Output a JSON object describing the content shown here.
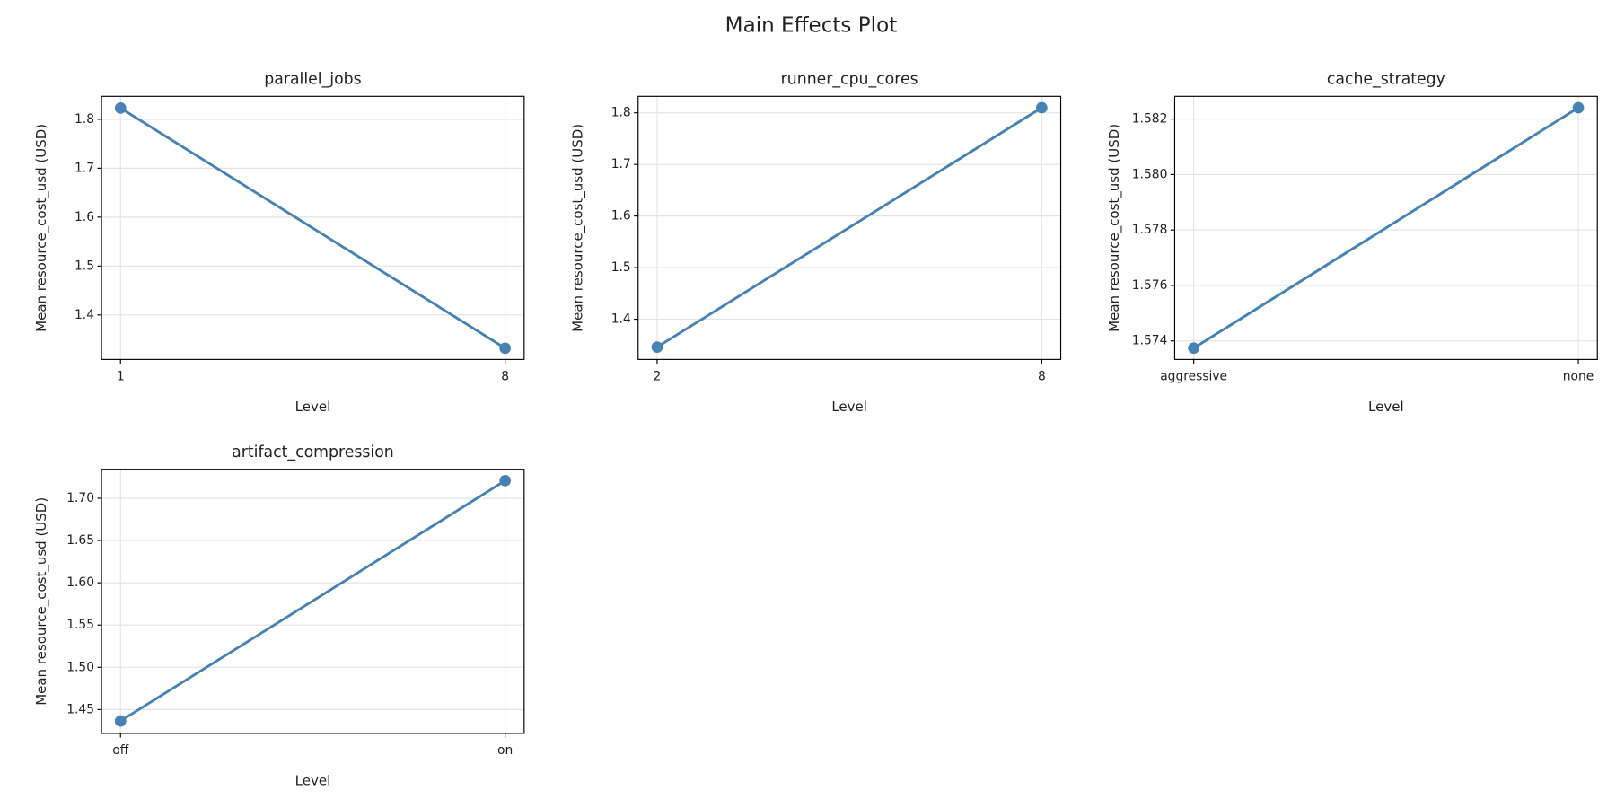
{
  "title": "Main Effects Plot",
  "chart_data": [
    {
      "type": "line",
      "title": "parallel_jobs",
      "x_label": "Level",
      "y_label": "Mean resource_cost_usd (USD)",
      "categories": [
        "1",
        "8"
      ],
      "series": [
        {
          "color": "#4682b4",
          "values": [
            1.823,
            1.332
          ]
        }
      ],
      "ylim": [
        1.309,
        1.847
      ],
      "yticks": [
        1.4,
        1.5,
        1.6,
        1.7,
        1.8
      ],
      "grid": true
    },
    {
      "type": "line",
      "title": "runner_cpu_cores",
      "x_label": "Level",
      "y_label": "Mean resource_cost_usd (USD)",
      "categories": [
        "2",
        "8"
      ],
      "series": [
        {
          "color": "#4682b4",
          "values": [
            1.346,
            1.81
          ]
        }
      ],
      "ylim": [
        1.322,
        1.832
      ],
      "yticks": [
        1.4,
        1.5,
        1.6,
        1.7,
        1.8
      ],
      "grid": true
    },
    {
      "type": "line",
      "title": "cache_strategy",
      "x_label": "Level",
      "y_label": "Mean resource_cost_usd (USD)",
      "categories": [
        "aggressive",
        "none"
      ],
      "series": [
        {
          "color": "#4682b4",
          "values": [
            1.57374,
            1.58241
          ]
        }
      ],
      "ylim": [
        1.57333,
        1.58282
      ],
      "yticks": [
        1.574,
        1.576,
        1.578,
        {
          "value": 1.58,
          "label": "1.580"
        },
        1.582
      ],
      "grid": true
    },
    {
      "type": "line",
      "title": "artifact_compression",
      "x_label": "Level",
      "y_label": "Mean resource_cost_usd (USD)",
      "categories": [
        "off",
        "on"
      ],
      "series": [
        {
          "color": "#4682b4",
          "values": [
            1.4365,
            1.7208
          ]
        }
      ],
      "ylim": [
        1.4218,
        1.7343
      ],
      "yticks": [
        1.45,
        {
          "value": 1.5,
          "label": "1.50"
        },
        1.55,
        {
          "value": 1.6,
          "label": "1.60"
        },
        1.65,
        {
          "value": 1.7,
          "label": "1.70"
        }
      ],
      "grid": true
    }
  ]
}
